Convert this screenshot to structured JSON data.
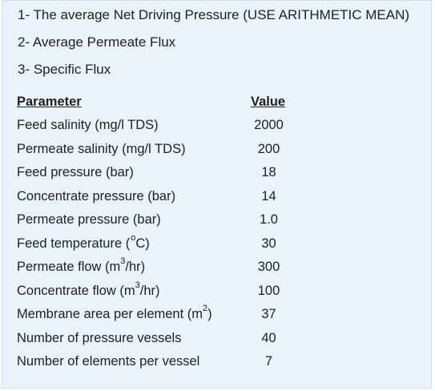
{
  "questions": [
    "1- The average Net Driving Pressure (USE ARITHMETIC MEAN)",
    "2- Average Permeate Flux",
    "3- Specific Flux"
  ],
  "table": {
    "header_parameter": "Parameter",
    "header_value": "Value",
    "rows": [
      {
        "parameter": "Feed salinity (mg/l TDS)",
        "value": "2000"
      },
      {
        "parameter": "Permeate salinity (mg/l TDS)",
        "value": "200"
      },
      {
        "parameter": "Feed pressure (bar)",
        "value": "18"
      },
      {
        "parameter": "Concentrate pressure (bar)",
        "value": "14"
      },
      {
        "parameter": "Permeate pressure (bar)",
        "value": "1.0"
      },
      {
        "parameter_before": "Feed temperature (",
        "parameter_sup": "o",
        "parameter_after": "C)",
        "value": "30"
      },
      {
        "parameter_before": "Permeate flow (m",
        "parameter_sup": "3",
        "parameter_after": "/hr)",
        "value": "300"
      },
      {
        "parameter_before": "Concentrate flow (m",
        "parameter_sup": "3",
        "parameter_after": "/hr)",
        "value": "100"
      },
      {
        "parameter_before": "Membrane area per element (m",
        "parameter_sup": "2",
        "parameter_after": ")",
        "value": "37"
      },
      {
        "parameter": "Number of pressure vessels",
        "value": "40"
      },
      {
        "parameter": "Number of elements per vessel",
        "value": "7"
      }
    ]
  }
}
